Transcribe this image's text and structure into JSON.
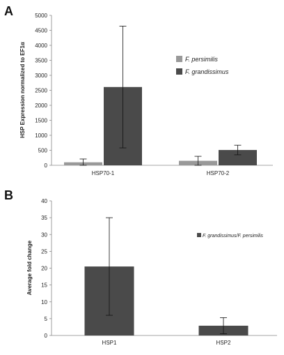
{
  "chart_data": [
    {
      "panel": "A",
      "type": "bar",
      "ylabel": "HSP Expression normalized to EF1α",
      "ylim": [
        0,
        5000
      ],
      "yticks": [
        0,
        500,
        1000,
        1500,
        2000,
        2500,
        3000,
        3500,
        4000,
        4500,
        5000
      ],
      "categories": [
        "HSP70-1",
        "HSP70-2"
      ],
      "series": [
        {
          "name": "F. persimilis",
          "color": "#999999",
          "values": [
            100,
            150
          ],
          "errors": [
            110,
            150
          ]
        },
        {
          "name": "F. grandissimus",
          "color": "#4a4a4a",
          "values": [
            2610,
            510
          ],
          "errors": [
            2030,
            160
          ]
        }
      ],
      "legend": "right",
      "grid": false
    },
    {
      "panel": "B",
      "type": "bar",
      "ylabel": "Average fold change",
      "ylim": [
        0,
        40
      ],
      "yticks": [
        0,
        5,
        10,
        15,
        20,
        25,
        30,
        35,
        40
      ],
      "categories": [
        "HSP1",
        "HSP2"
      ],
      "series": [
        {
          "name": "F. grandissimus/F. persimilis",
          "color": "#4a4a4a",
          "values": [
            20.5,
            2.9
          ],
          "errors": [
            14.5,
            2.4
          ]
        }
      ],
      "legend": "top-right",
      "grid": false
    }
  ]
}
